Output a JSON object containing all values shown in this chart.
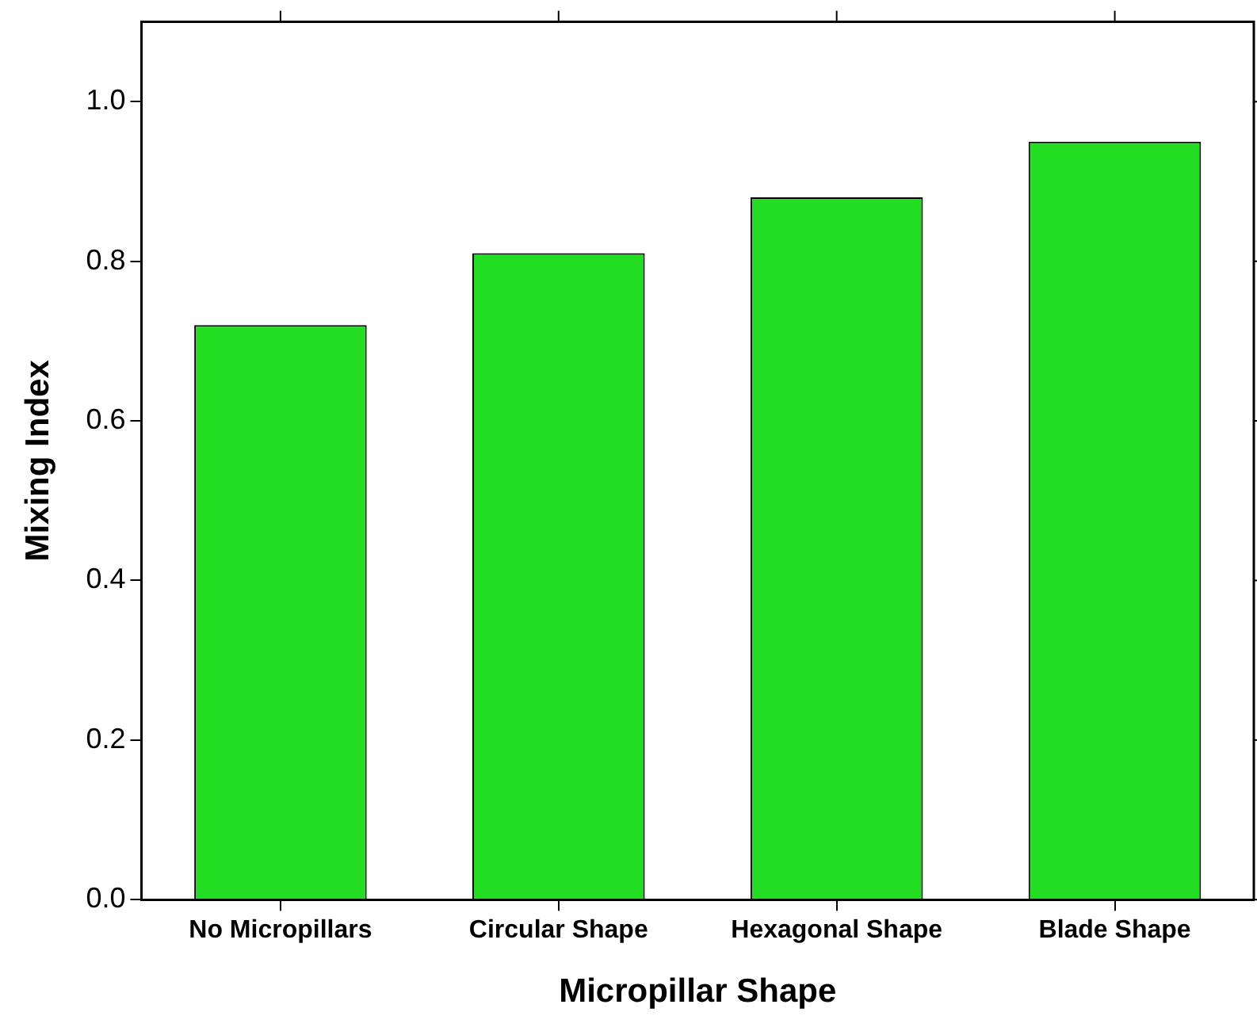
{
  "chart_data": {
    "type": "bar",
    "xlabel": "Micropillar Shape",
    "ylabel": "Mixing Index",
    "categories": [
      "No Micropillars",
      "Circular Shape",
      "Hexagonal Shape",
      "Blade Shape"
    ],
    "values": [
      0.72,
      0.81,
      0.88,
      0.95
    ],
    "color": "#22dd22",
    "ylim": [
      0,
      1.1
    ],
    "yticks": [
      {
        "value": 0,
        "label": "0.0"
      },
      0.2,
      0.4,
      0.6,
      0.8,
      {
        "value": 1,
        "label": "1.0"
      }
    ],
    "grid": false,
    "legend": false
  }
}
